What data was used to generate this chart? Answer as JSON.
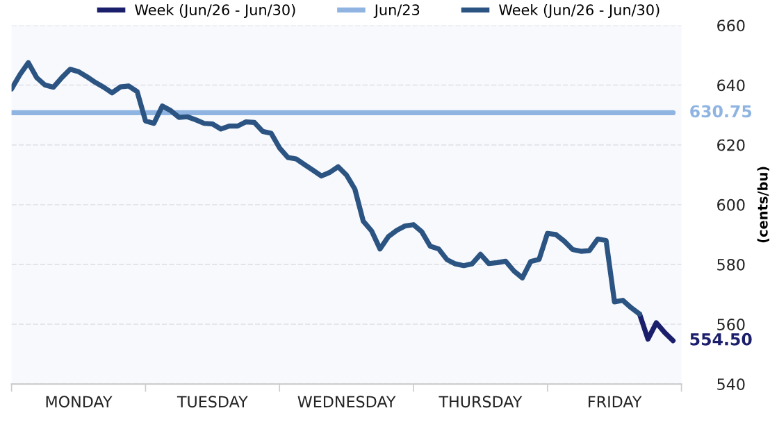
{
  "chart_data": {
    "type": "line",
    "ylabel": "(cents/bu)",
    "legend": "top",
    "grid": "y",
    "line_style": "solid",
    "marker": "none",
    "ylim": [
      540,
      660
    ],
    "yticks": [
      540,
      560,
      580,
      600,
      620,
      640,
      660
    ],
    "categories": [
      null,
      null,
      null,
      null,
      null,
      null,
      null,
      null,
      "MONDAY",
      null,
      null,
      null,
      null,
      null,
      null,
      null,
      null,
      null,
      null,
      null,
      null,
      null,
      null,
      null,
      "TUESDAY",
      null,
      null,
      null,
      null,
      null,
      null,
      null,
      null,
      null,
      null,
      null,
      null,
      null,
      null,
      null,
      "WEDNESDAY",
      null,
      null,
      null,
      null,
      null,
      null,
      null,
      null,
      null,
      null,
      null,
      null,
      null,
      null,
      null,
      "THURSDAY",
      null,
      null,
      null,
      null,
      null,
      null,
      null,
      null,
      null,
      null,
      null,
      null,
      null,
      null,
      null,
      "FRIDAY",
      null,
      null,
      null,
      null,
      null,
      null,
      null
    ],
    "series": [
      {
        "name": "Week (Jun/26 - Jun/30)",
        "color": "#1b1f6b",
        "values": [
          null,
          null,
          null,
          null,
          null,
          null,
          null,
          null,
          null,
          null,
          null,
          null,
          null,
          null,
          null,
          null,
          null,
          null,
          null,
          null,
          null,
          null,
          null,
          null,
          null,
          null,
          null,
          null,
          null,
          null,
          null,
          null,
          null,
          null,
          null,
          null,
          null,
          null,
          null,
          null,
          null,
          null,
          null,
          null,
          null,
          null,
          null,
          null,
          null,
          null,
          null,
          null,
          null,
          null,
          null,
          null,
          null,
          null,
          null,
          null,
          null,
          null,
          null,
          null,
          null,
          null,
          null,
          null,
          null,
          null,
          null,
          null,
          null,
          null,
          null,
          563.4,
          555.0,
          560.5,
          557.2,
          554.5
        ],
        "value_labels": [
          null,
          null,
          null,
          null,
          null,
          null,
          null,
          null,
          null,
          null,
          null,
          null,
          null,
          null,
          null,
          null,
          null,
          null,
          null,
          null,
          null,
          null,
          null,
          null,
          null,
          null,
          null,
          null,
          null,
          null,
          null,
          null,
          null,
          null,
          null,
          null,
          null,
          null,
          null,
          null,
          null,
          null,
          null,
          null,
          null,
          null,
          null,
          null,
          null,
          null,
          null,
          null,
          null,
          null,
          null,
          null,
          null,
          null,
          null,
          null,
          null,
          null,
          null,
          null,
          null,
          null,
          null,
          null,
          null,
          null,
          null,
          null,
          null,
          null,
          null,
          null,
          null,
          null,
          null,
          "554.50"
        ]
      },
      {
        "name": "Jun/23",
        "color": "#8fb4e2",
        "values": [
          630.75,
          630.75,
          630.75,
          630.75,
          630.75,
          630.75,
          630.75,
          630.75,
          630.75,
          630.75,
          630.75,
          630.75,
          630.75,
          630.75,
          630.75,
          630.75,
          630.75,
          630.75,
          630.75,
          630.75,
          630.75,
          630.75,
          630.75,
          630.75,
          630.75,
          630.75,
          630.75,
          630.75,
          630.75,
          630.75,
          630.75,
          630.75,
          630.75,
          630.75,
          630.75,
          630.75,
          630.75,
          630.75,
          630.75,
          630.75,
          630.75,
          630.75,
          630.75,
          630.75,
          630.75,
          630.75,
          630.75,
          630.75,
          630.75,
          630.75,
          630.75,
          630.75,
          630.75,
          630.75,
          630.75,
          630.75,
          630.75,
          630.75,
          630.75,
          630.75,
          630.75,
          630.75,
          630.75,
          630.75,
          630.75,
          630.75,
          630.75,
          630.75,
          630.75,
          630.75,
          630.75,
          630.75,
          630.75,
          630.75,
          630.75,
          630.75,
          630.75,
          630.75,
          630.75,
          630.75
        ],
        "value_labels": [
          null,
          null,
          null,
          null,
          null,
          null,
          null,
          null,
          null,
          null,
          null,
          null,
          null,
          null,
          null,
          null,
          null,
          null,
          null,
          null,
          null,
          null,
          null,
          null,
          null,
          null,
          null,
          null,
          null,
          null,
          null,
          null,
          null,
          null,
          null,
          null,
          null,
          null,
          null,
          null,
          null,
          null,
          null,
          null,
          null,
          null,
          null,
          null,
          null,
          null,
          null,
          null,
          null,
          null,
          null,
          null,
          null,
          null,
          null,
          null,
          null,
          null,
          null,
          null,
          null,
          null,
          null,
          null,
          null,
          null,
          null,
          null,
          null,
          null,
          null,
          null,
          null,
          null,
          null,
          "630.75"
        ]
      },
      {
        "name": "Week (Jun/26 - Jun/30)",
        "color": "#2b5482",
        "values": [
          638.7,
          643.5,
          647.5,
          642.5,
          640.0,
          639.3,
          642.5,
          645.3,
          644.5,
          642.8,
          640.9,
          639.3,
          637.4,
          639.4,
          639.7,
          637.8,
          628.0,
          627.2,
          633.0,
          631.5,
          629.2,
          629.4,
          628.4,
          627.2,
          627.0,
          625.3,
          626.3,
          626.3,
          627.7,
          627.5,
          624.5,
          623.9,
          619.0,
          615.8,
          615.3,
          613.4,
          611.5,
          609.6,
          610.8,
          612.7,
          609.9,
          605.2,
          594.5,
          591.2,
          585.2,
          589.3,
          591.4,
          592.9,
          593.3,
          590.9,
          586.1,
          585.2,
          581.6,
          580.2,
          579.6,
          580.2,
          583.4,
          580.3,
          580.6,
          581.1,
          577.8,
          575.5,
          581.0,
          581.7,
          590.4,
          590.0,
          587.8,
          585.0,
          584.4,
          584.6,
          588.5,
          588.0,
          567.5,
          568.0,
          565.5,
          563.4,
          null,
          null,
          null,
          null
        ]
      }
    ]
  }
}
